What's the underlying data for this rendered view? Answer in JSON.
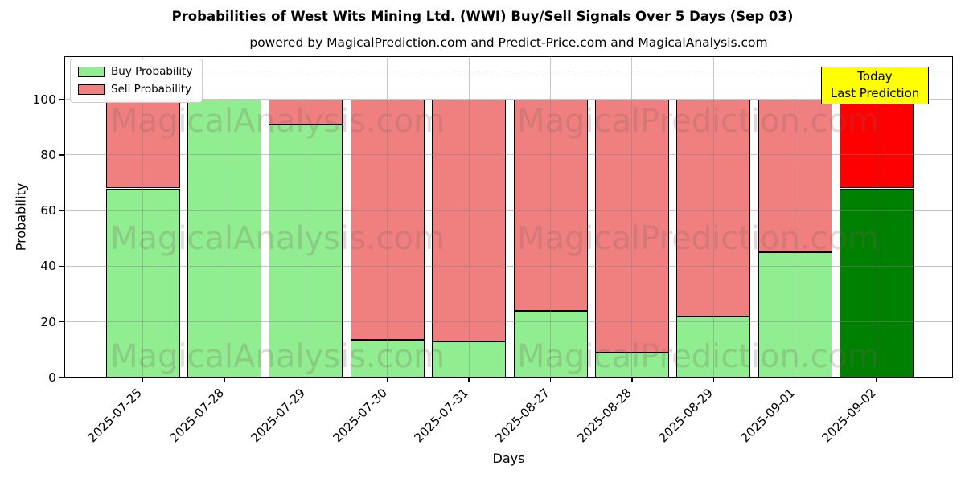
{
  "title": "Probabilities of West Wits Mining Ltd. (WWI) Buy/Sell Signals Over 5 Days (Sep 03)",
  "subtitle": "powered by MagicalPrediction.com and Predict-Price.com and MagicalAnalysis.com",
  "legend": {
    "items": [
      {
        "label": "Buy Probability",
        "color": "#90ee90"
      },
      {
        "label": "Sell Probability",
        "color": "#f08080"
      }
    ]
  },
  "annotation": {
    "line1": "Today",
    "line2": "Last Prediction",
    "bg": "#ffff00"
  },
  "axes": {
    "xlabel": "Days",
    "ylabel": "Probability",
    "yticks": [
      0,
      20,
      40,
      60,
      80,
      100
    ],
    "ylim": [
      0,
      115.5
    ],
    "dashed_line_y": 110
  },
  "watermarks": {
    "left_text": "MagicalAnalysis.com",
    "right_text": "MagicalPrediction.com"
  },
  "colors": {
    "buy": "#90ee90",
    "sell": "#f08080",
    "today_buy": "#008000",
    "today_sell": "#ff0000",
    "bar_edge": "#000000",
    "grid": "#808080",
    "dashed_line": "#595959",
    "annotation_bg": "#ffff00"
  },
  "chart_data": {
    "type": "bar",
    "stacked": true,
    "title": "Probabilities of West Wits Mining Ltd. (WWI) Buy/Sell Signals Over 5 Days (Sep 03)",
    "xlabel": "Days",
    "ylabel": "Probability",
    "ylim": [
      0,
      115.5
    ],
    "yticks": [
      0,
      20,
      40,
      60,
      80,
      100
    ],
    "grid": true,
    "legend_position": "upper left",
    "reference_line_y": 110,
    "categories": [
      "2025-07-25",
      "2025-07-28",
      "2025-07-29",
      "2025-07-30",
      "2025-07-31",
      "2025-08-27",
      "2025-08-28",
      "2025-08-29",
      "2025-09-01",
      "2025-09-02"
    ],
    "series": [
      {
        "name": "Buy Probability",
        "color": "#90ee90",
        "today_color": "#008000",
        "values": [
          68,
          100,
          91,
          13.5,
          13,
          24,
          9,
          22,
          45,
          68
        ]
      },
      {
        "name": "Sell Probability",
        "color": "#f08080",
        "today_color": "#ff0000",
        "values": [
          32,
          0,
          9,
          86.5,
          87,
          76,
          91,
          78,
          55,
          32
        ]
      }
    ],
    "today_bar_category": "2025-09-02"
  }
}
